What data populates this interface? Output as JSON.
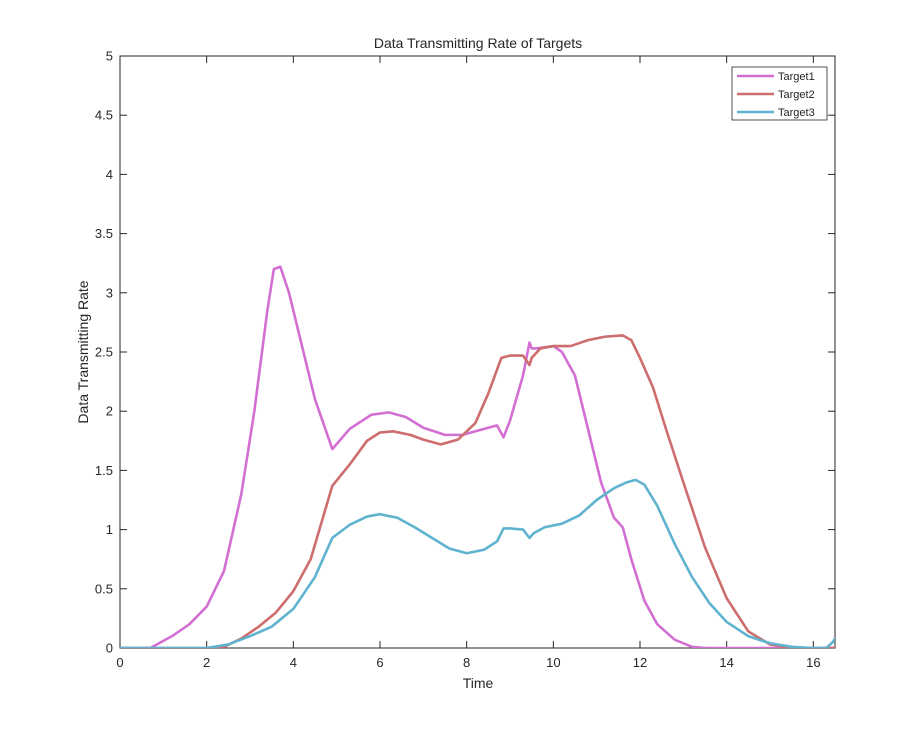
{
  "chart_data": {
    "type": "line",
    "title": "Data Transmitting Rate of Targets",
    "xlabel": "Time",
    "ylabel": "Data Transmitting Rate",
    "xlim": [
      0,
      16.5
    ],
    "ylim": [
      0,
      5
    ],
    "xticks": [
      0,
      2,
      4,
      6,
      8,
      10,
      12,
      14,
      16
    ],
    "yticks": [
      0,
      0.5,
      1,
      1.5,
      2,
      2.5,
      3,
      3.5,
      4,
      4.5,
      5
    ],
    "xtick_labels": [
      "0",
      "2",
      "4",
      "6",
      "8",
      "10",
      "12",
      "14",
      "16"
    ],
    "ytick_labels": [
      "0",
      "0.5",
      "1",
      "1.5",
      "2",
      "2.5",
      "3",
      "3.5",
      "4",
      "4.5",
      "5"
    ],
    "grid": false,
    "legend_position": "top-right",
    "series": [
      {
        "name": "Target1",
        "color": "#d36fd3",
        "x": [
          0,
          0.7,
          1.2,
          1.6,
          2.0,
          2.4,
          2.8,
          3.1,
          3.4,
          3.55,
          3.7,
          3.9,
          4.2,
          4.5,
          4.9,
          5.3,
          5.8,
          6.2,
          6.6,
          7.0,
          7.5,
          7.9,
          8.3,
          8.7,
          8.85,
          9.0,
          9.3,
          9.45,
          9.5,
          9.6,
          9.8,
          10.0,
          10.2,
          10.5,
          10.8,
          11.1,
          11.4,
          11.6,
          11.8,
          12.1,
          12.4,
          12.8,
          13.2,
          13.5,
          14.0,
          14.5,
          15.0,
          15.5,
          16.0,
          16.5
        ],
        "y": [
          0,
          0,
          0.1,
          0.2,
          0.35,
          0.65,
          1.3,
          2.0,
          2.85,
          3.2,
          3.22,
          3.0,
          2.55,
          2.1,
          1.68,
          1.85,
          1.97,
          1.99,
          1.95,
          1.86,
          1.8,
          1.8,
          1.84,
          1.88,
          1.78,
          1.92,
          2.3,
          2.58,
          2.53,
          2.53,
          2.54,
          2.55,
          2.5,
          2.3,
          1.85,
          1.4,
          1.1,
          1.02,
          0.75,
          0.4,
          0.2,
          0.07,
          0.01,
          0,
          0,
          0,
          0,
          0,
          0,
          0
        ]
      },
      {
        "name": "Target2",
        "color": "#cd6d6d",
        "x": [
          0,
          2.0,
          2.4,
          2.8,
          3.2,
          3.6,
          4.0,
          4.4,
          4.9,
          5.3,
          5.7,
          6.0,
          6.3,
          6.7,
          7.0,
          7.4,
          7.8,
          8.2,
          8.5,
          8.8,
          9.0,
          9.3,
          9.45,
          9.5,
          9.7,
          10.0,
          10.4,
          10.8,
          11.2,
          11.6,
          11.8,
          12.0,
          12.3,
          12.6,
          13.0,
          13.5,
          14.0,
          14.5,
          15.0,
          15.5,
          16.0,
          16.5
        ],
        "y": [
          0,
          0,
          0.01,
          0.08,
          0.18,
          0.3,
          0.48,
          0.75,
          1.37,
          1.55,
          1.75,
          1.82,
          1.83,
          1.8,
          1.76,
          1.72,
          1.76,
          1.9,
          2.15,
          2.45,
          2.47,
          2.47,
          2.39,
          2.45,
          2.53,
          2.55,
          2.55,
          2.6,
          2.63,
          2.64,
          2.6,
          2.45,
          2.2,
          1.85,
          1.4,
          0.85,
          0.42,
          0.14,
          0.03,
          0,
          0,
          0
        ]
      },
      {
        "name": "Target3",
        "color": "#5fb3cf",
        "x": [
          0,
          2.0,
          2.5,
          3.0,
          3.5,
          4.0,
          4.5,
          4.9,
          5.3,
          5.7,
          6.0,
          6.4,
          6.8,
          7.2,
          7.6,
          8.0,
          8.4,
          8.7,
          8.85,
          9.0,
          9.3,
          9.45,
          9.55,
          9.8,
          10.2,
          10.6,
          11.0,
          11.4,
          11.7,
          11.9,
          12.1,
          12.4,
          12.8,
          13.2,
          13.6,
          14.0,
          14.5,
          15.0,
          15.5,
          16.0,
          16.3,
          16.45,
          16.5
        ],
        "y": [
          0,
          0,
          0.03,
          0.1,
          0.18,
          0.33,
          0.6,
          0.93,
          1.04,
          1.11,
          1.13,
          1.1,
          1.02,
          0.93,
          0.84,
          0.8,
          0.83,
          0.9,
          1.01,
          1.01,
          1.0,
          0.93,
          0.97,
          1.02,
          1.05,
          1.12,
          1.25,
          1.35,
          1.4,
          1.42,
          1.38,
          1.2,
          0.88,
          0.6,
          0.38,
          0.22,
          0.1,
          0.04,
          0.01,
          0,
          0,
          0.05,
          0.08
        ]
      }
    ]
  }
}
